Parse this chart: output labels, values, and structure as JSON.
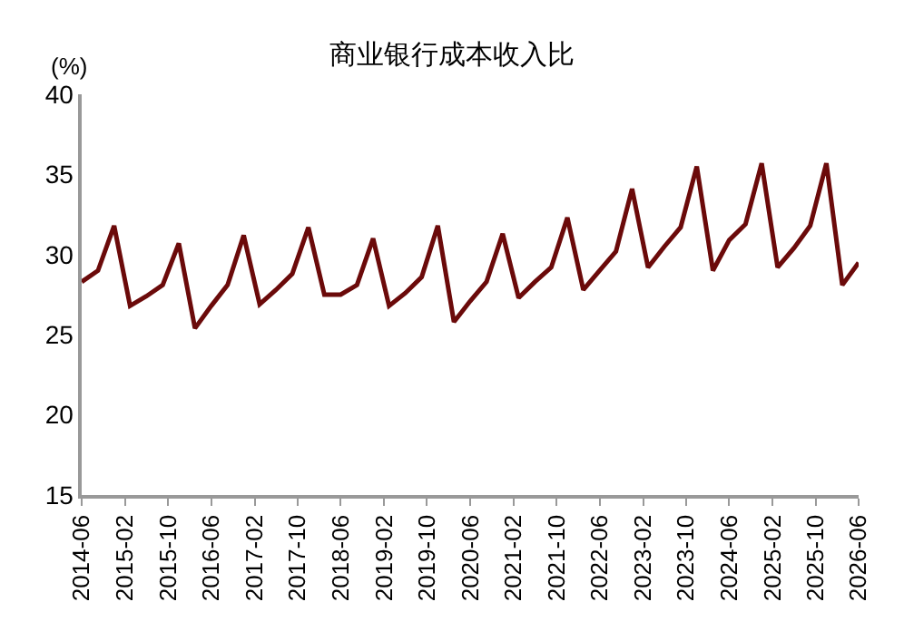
{
  "chart_data": {
    "type": "line",
    "title": "商业银行成本收入比",
    "ylabel": "(%)",
    "x": [
      "2014-06",
      "2014-09",
      "2014-12",
      "2015-03",
      "2015-06",
      "2015-09",
      "2015-12",
      "2016-03",
      "2016-06",
      "2016-09",
      "2016-12",
      "2017-03",
      "2017-06",
      "2017-09",
      "2017-12",
      "2018-03",
      "2018-06",
      "2018-09",
      "2018-12",
      "2019-03",
      "2019-06",
      "2019-09",
      "2019-12",
      "2020-03",
      "2020-06",
      "2020-09",
      "2020-12",
      "2021-03",
      "2021-06",
      "2021-09",
      "2021-12",
      "2022-03",
      "2022-06",
      "2022-09",
      "2022-12",
      "2023-03",
      "2023-06",
      "2023-09",
      "2023-12",
      "2024-03",
      "2024-06",
      "2024-09",
      "2024-12",
      "2025-03",
      "2025-06",
      "2025-09",
      "2025-12",
      "2026-03",
      "2026-06"
    ],
    "series": [
      {
        "color": "#6b0a0a",
        "values": [
          28.3,
          29.0,
          31.8,
          26.8,
          27.4,
          28.1,
          30.7,
          25.4,
          26.8,
          28.1,
          31.2,
          26.9,
          27.8,
          28.8,
          31.7,
          27.5,
          27.5,
          28.1,
          31.0,
          26.8,
          27.6,
          28.6,
          31.8,
          25.8,
          27.1,
          28.3,
          31.3,
          27.3,
          28.3,
          29.2,
          32.3,
          27.8,
          29.0,
          30.2,
          34.1,
          29.2,
          30.5,
          31.7,
          35.5,
          29.0,
          30.9,
          31.9,
          35.7,
          29.2,
          30.4,
          31.8,
          35.7,
          28.1,
          29.5
        ]
      }
    ],
    "xlim": [
      "2014-06",
      "2026-06"
    ],
    "xticks": [
      "2014-06",
      "2015-02",
      "2015-10",
      "2016-06",
      "2017-02",
      "2017-10",
      "2018-06",
      "2019-02",
      "2019-10",
      "2020-06",
      "2021-02",
      "2021-10",
      "2022-06",
      "2023-02",
      "2023-10",
      "2024-06",
      "2025-02",
      "2025-10",
      "2026-06"
    ],
    "ylim": [
      15,
      40
    ],
    "yticks": [
      15,
      20,
      25,
      30,
      35,
      40
    ],
    "grid": false,
    "marker": "none",
    "line_style": "solid"
  }
}
